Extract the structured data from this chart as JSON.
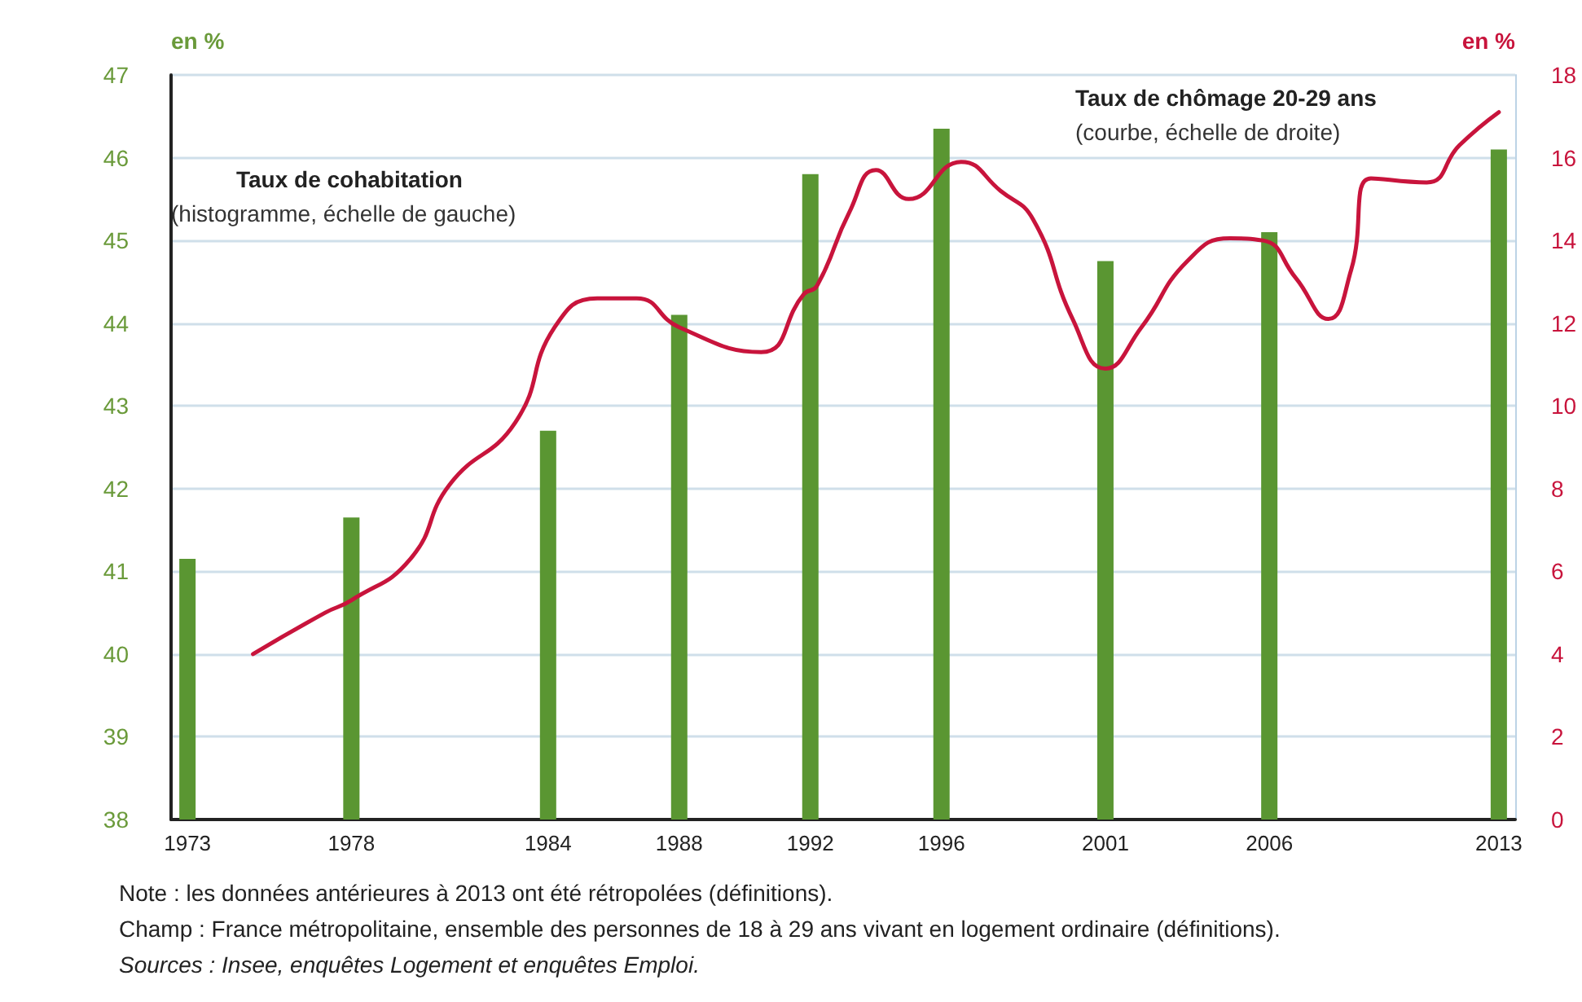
{
  "chart_data": {
    "type": "bar",
    "ylabel": "en %",
    "y2label": "en %",
    "x": [
      1973,
      1978,
      1984,
      1988,
      1992,
      1996,
      2001,
      2006,
      2013
    ],
    "xlim": [
      1972.5,
      2013.5
    ],
    "xticks": [
      1973,
      1978,
      1984,
      1988,
      1992,
      1996,
      2001,
      2006,
      2013
    ],
    "ylim": [
      38,
      47
    ],
    "yticks": [
      38,
      39,
      40,
      41,
      42,
      43,
      44,
      45,
      46,
      47
    ],
    "y2lim": [
      0,
      18
    ],
    "y2ticks": [
      0,
      2,
      4,
      6,
      8,
      10,
      12,
      14,
      16,
      18
    ],
    "series": [
      {
        "color": "#5a9632",
        "values": [
          41.15,
          41.65,
          42.7,
          44.1,
          45.8,
          46.35,
          44.75,
          45.1,
          46.1
        ]
      },
      {
        "type": "line",
        "axis": "y2",
        "color": "#c8143c",
        "x": [
          1975,
          1977.2,
          1978,
          1979.8,
          1981,
          1983,
          1984.2,
          1985.5,
          1986.7,
          1988,
          1990.5,
          1991.8,
          1992.2,
          1993.2,
          1994,
          1995,
          1996.6,
          1997.8,
          1998.8,
          2000,
          2001,
          2002.1,
          2003.5,
          2004.8,
          2005.8,
          2006.8,
          2007.8,
          2008.5,
          2009.1,
          2010.8,
          2011.8,
          2013
        ],
        "values": [
          4.0,
          5.0,
          5.3,
          6.3,
          8.1,
          9.6,
          11.9,
          12.6,
          12.6,
          11.9,
          11.3,
          12.7,
          12.9,
          14.7,
          15.7,
          15.0,
          15.9,
          15.2,
          14.5,
          12.1,
          10.9,
          11.9,
          13.5,
          14.05,
          14.0,
          13.1,
          12.1,
          13.3,
          15.5,
          15.4,
          16.3,
          17.1
        ]
      }
    ],
    "annotations": [
      "Taux de cohabitation\n(histogramme, échelle de gauche)",
      "Taux de chômage 20-29 ans\n(courbe, échelle de droite)",
      "Note : les données antérieures à 2013 ont été rétropolées (définitions).",
      "Champ : France métropolitaine, ensemble des personnes de 18 à 29 ans vivant en logement ordinaire (définitions).",
      "Sources : Insee, enquêtes Logement et enquêtes Emploi."
    ],
    "grid": "y",
    "marker": "none",
    "line_style": "solid"
  }
}
